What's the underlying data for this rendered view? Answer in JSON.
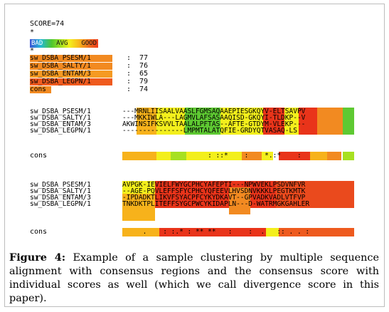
{
  "score_label": "SCORE=74",
  "star": "*",
  "legend": {
    "bad": "BAD",
    "avg": "AVG",
    "good": "GOOD"
  },
  "scores": [
    {
      "name": "sw_DSBA_PSESM/1",
      "value": "77"
    },
    {
      "name": "sw_DSBA_SALTY/1",
      "value": "76"
    },
    {
      "name": "sw_DSBA_ENTAM/3",
      "value": "65"
    },
    {
      "name": "sw_DSBA_LEGPN/1",
      "value": "79"
    },
    {
      "name": "cons",
      "value": "74"
    }
  ],
  "block1": {
    "names": [
      "sw_DSBA_PSESM/1",
      "sw_DSBA_SALTY/1",
      "sw_DSBA_ENTAM/3",
      "sw_DSBA_LEGPN/1"
    ],
    "rows": [
      "---MRNLIISAALVAASLFGMSAQAAEPIESGKQYV-ELTSAVPV",
      "---MKKIWLA---LAGMVLAFSASAAQISD-GKQYI-TLDKP--V",
      "AKWINSIFKSVVLTAALALPFTAS--AFTE-GTDYM-VLEKP---",
      "---------------LMPMTALATQFIE-GRDYQTVASAQ-LS"
    ],
    "cons_label": "cons",
    "cons_text": "                     : ::*    :    *.:*    :"
  },
  "block2": {
    "names": [
      "sw_DSBA_PSESM/1",
      "sw_DSBA_SALTY/1",
      "sw_DSBA_ENTAM/3",
      "sw_DSBA_LEGPN/1"
    ],
    "rows": [
      "AVPGK-IEVIELFWYGCPHCYAFEPTI---NPWVEKLPSDVNFVR",
      "--AGE-PQVLEFFSFYCPHCYQFEEVLHVSDNVKKKLPEGTKMTK",
      "-IPDADKTLIKVFSYACPFCYKYDKAVT--GPVADKVADLVTFVP",
      "TNKDKTPLITEFFSYGCPWCYKIDAPLN---D-WATRMGKGAHLER"
    ],
    "cons_label": "cons",
    "cons_text": "     .    : :.* : ** **   :    :  .   :: . . :"
  },
  "caption": {
    "label": "Figure 4:",
    "text": "Example of a sample clustering by multiple sequence alignment with consensus regions and the consensus score with individual scores as well (which we call divergence score in this paper)."
  },
  "colors": {
    "bad": "#3b55d6",
    "avg": "#f3ef1c",
    "good": "#ee3d1d",
    "orange": "#f06d1e"
  }
}
